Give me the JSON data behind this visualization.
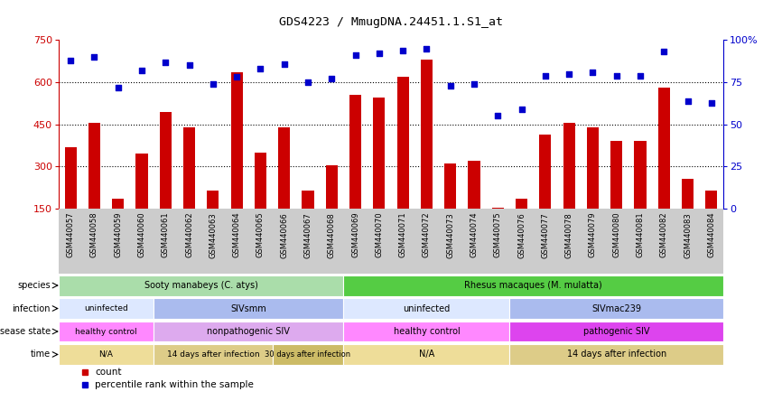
{
  "title": "GDS4223 / MmugDNA.24451.1.S1_at",
  "samples": [
    "GSM440057",
    "GSM440058",
    "GSM440059",
    "GSM440060",
    "GSM440061",
    "GSM440062",
    "GSM440063",
    "GSM440064",
    "GSM440065",
    "GSM440066",
    "GSM440067",
    "GSM440068",
    "GSM440069",
    "GSM440070",
    "GSM440071",
    "GSM440072",
    "GSM440073",
    "GSM440074",
    "GSM440075",
    "GSM440076",
    "GSM440077",
    "GSM440078",
    "GSM440079",
    "GSM440080",
    "GSM440081",
    "GSM440082",
    "GSM440083",
    "GSM440084"
  ],
  "counts": [
    370,
    455,
    185,
    345,
    495,
    440,
    215,
    635,
    350,
    440,
    215,
    305,
    555,
    545,
    620,
    680,
    310,
    320,
    155,
    185,
    415,
    455,
    440,
    390,
    390,
    580,
    255,
    215
  ],
  "percentiles": [
    88,
    90,
    72,
    82,
    87,
    85,
    74,
    78,
    83,
    86,
    75,
    77,
    91,
    92,
    94,
    95,
    73,
    74,
    55,
    59,
    79,
    80,
    81,
    79,
    79,
    93,
    64,
    63
  ],
  "ylim_left": [
    150,
    750
  ],
  "ylim_right": [
    0,
    100
  ],
  "left_yticks": [
    150,
    300,
    450,
    600,
    750
  ],
  "right_yticks": [
    0,
    25,
    50,
    75,
    100
  ],
  "right_yticklabels": [
    "0",
    "25",
    "50",
    "75",
    "100%"
  ],
  "bar_color": "#cc0000",
  "dot_color": "#0000cc",
  "bg_color": "#ffffff",
  "xticklabel_bg": "#cccccc",
  "annotation_rows": [
    {
      "label": "species",
      "segments": [
        {
          "text": "Sooty manabeys (C. atys)",
          "start": 0,
          "end": 12,
          "color": "#aaddaa"
        },
        {
          "text": "Rhesus macaques (M. mulatta)",
          "start": 12,
          "end": 28,
          "color": "#55cc44"
        }
      ]
    },
    {
      "label": "infection",
      "segments": [
        {
          "text": "uninfected",
          "start": 0,
          "end": 4,
          "color": "#dde8ff"
        },
        {
          "text": "SIVsmm",
          "start": 4,
          "end": 12,
          "color": "#aabbee"
        },
        {
          "text": "uninfected",
          "start": 12,
          "end": 19,
          "color": "#dde8ff"
        },
        {
          "text": "SIVmac239",
          "start": 19,
          "end": 28,
          "color": "#aabbee"
        }
      ]
    },
    {
      "label": "disease state",
      "segments": [
        {
          "text": "healthy control",
          "start": 0,
          "end": 4,
          "color": "#ff88ff"
        },
        {
          "text": "nonpathogenic SIV",
          "start": 4,
          "end": 12,
          "color": "#ddaaee"
        },
        {
          "text": "healthy control",
          "start": 12,
          "end": 19,
          "color": "#ff88ff"
        },
        {
          "text": "pathogenic SIV",
          "start": 19,
          "end": 28,
          "color": "#dd44ee"
        }
      ]
    },
    {
      "label": "time",
      "segments": [
        {
          "text": "N/A",
          "start": 0,
          "end": 4,
          "color": "#eedd99"
        },
        {
          "text": "14 days after infection",
          "start": 4,
          "end": 9,
          "color": "#ddcc88"
        },
        {
          "text": "30 days after infection",
          "start": 9,
          "end": 12,
          "color": "#ccbb66"
        },
        {
          "text": "N/A",
          "start": 12,
          "end": 19,
          "color": "#eedd99"
        },
        {
          "text": "14 days after infection",
          "start": 19,
          "end": 28,
          "color": "#ddcc88"
        }
      ]
    }
  ]
}
